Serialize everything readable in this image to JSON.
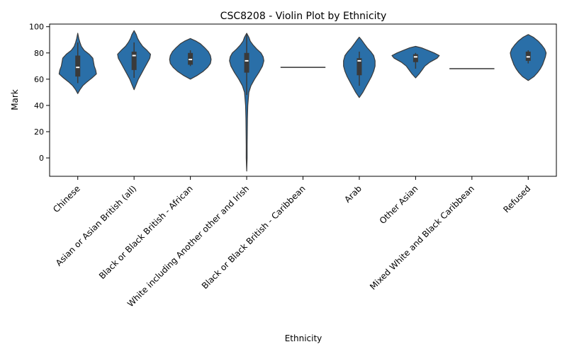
{
  "chart_data": {
    "type": "violin",
    "title": "CSC8208 - Violin Plot by Ethnicity",
    "xlabel": "Ethnicity",
    "ylabel": "Mark",
    "ylim": [
      -14,
      102
    ],
    "yticks": [
      0,
      20,
      40,
      60,
      80,
      100
    ],
    "grid": false,
    "color": "#2a6fa8",
    "categories": [
      "Chinese",
      "Asian or Asian British (all)",
      "Black or Black British - African",
      "White including Another other and Irish",
      "Black or Black British - Caribbean",
      "Arab",
      "Other Asian",
      "Mixed White and Black Caribbean",
      "Refused"
    ],
    "violins": [
      {
        "category": "Chinese",
        "range": [
          49,
          95
        ],
        "profile": [
          [
            49,
            0
          ],
          [
            52,
            3
          ],
          [
            55,
            7
          ],
          [
            58,
            13
          ],
          [
            61,
            20
          ],
          [
            64,
            26
          ],
          [
            67,
            25
          ],
          [
            70,
            23
          ],
          [
            73,
            22
          ],
          [
            76,
            21
          ],
          [
            79,
            16
          ],
          [
            82,
            9
          ],
          [
            85,
            5
          ],
          [
            88,
            3
          ],
          [
            91,
            1.5
          ],
          [
            95,
            0
          ]
        ],
        "q1": 62,
        "median": 69,
        "q3": 78,
        "whisker": [
          57,
          88
        ]
      },
      {
        "category": "Asian or Asian British (all)",
        "range": [
          52,
          97
        ],
        "profile": [
          [
            52,
            0
          ],
          [
            56,
            3
          ],
          [
            60,
            6
          ],
          [
            64,
            10
          ],
          [
            68,
            14
          ],
          [
            72,
            18
          ],
          [
            76,
            22
          ],
          [
            79,
            23
          ],
          [
            82,
            18
          ],
          [
            85,
            12
          ],
          [
            88,
            8
          ],
          [
            91,
            5
          ],
          [
            94,
            3
          ],
          [
            97,
            0
          ]
        ],
        "q1": 67,
        "median": 78,
        "q3": 81,
        "whisker": [
          61,
          88
        ]
      },
      {
        "category": "Black or Black British - African",
        "range": [
          60,
          91
        ],
        "profile": [
          [
            60,
            0
          ],
          [
            63,
            10
          ],
          [
            66,
            18
          ],
          [
            69,
            24
          ],
          [
            72,
            28
          ],
          [
            75,
            29
          ],
          [
            78,
            28
          ],
          [
            81,
            25
          ],
          [
            84,
            20
          ],
          [
            87,
            14
          ],
          [
            89,
            8
          ],
          [
            91,
            0
          ]
        ],
        "q1": 71,
        "median": 75,
        "q3": 80,
        "whisker": [
          70,
          82
        ]
      },
      {
        "category": "White including Another other and Irish",
        "range": [
          -10,
          95
        ],
        "profile": [
          [
            -10,
            0
          ],
          [
            0,
            0.6
          ],
          [
            10,
            0.6
          ],
          [
            20,
            0.8
          ],
          [
            30,
            1
          ],
          [
            40,
            1.5
          ],
          [
            50,
            3
          ],
          [
            55,
            6
          ],
          [
            60,
            11
          ],
          [
            65,
            17
          ],
          [
            70,
            22
          ],
          [
            74,
            24
          ],
          [
            77,
            23
          ],
          [
            80,
            20
          ],
          [
            83,
            14
          ],
          [
            86,
            9
          ],
          [
            89,
            5
          ],
          [
            92,
            3
          ],
          [
            95,
            0
          ]
        ],
        "q1": 65,
        "median": 74,
        "q3": 80,
        "whisker": [
          48,
          95
        ]
      },
      {
        "category": "Black or Black British - Caribbean",
        "range": [
          69,
          69
        ],
        "single_value": 69
      },
      {
        "category": "Arab",
        "range": [
          46,
          92
        ],
        "profile": [
          [
            46,
            0
          ],
          [
            50,
            5
          ],
          [
            54,
            9
          ],
          [
            58,
            13
          ],
          [
            62,
            17
          ],
          [
            66,
            20
          ],
          [
            70,
            22
          ],
          [
            74,
            22
          ],
          [
            78,
            20
          ],
          [
            81,
            16
          ],
          [
            84,
            11
          ],
          [
            87,
            7
          ],
          [
            90,
            3
          ],
          [
            92,
            0
          ]
        ],
        "q1": 63,
        "median": 74,
        "q3": 76,
        "whisker": [
          55,
          81
        ]
      },
      {
        "category": "Other Asian",
        "range": [
          61,
          85
        ],
        "profile": [
          [
            61,
            0
          ],
          [
            64,
            5
          ],
          [
            67,
            9
          ],
          [
            70,
            13
          ],
          [
            73,
            20
          ],
          [
            76,
            30
          ],
          [
            78,
            33
          ],
          [
            80,
            26
          ],
          [
            82,
            17
          ],
          [
            84,
            8
          ],
          [
            85,
            0
          ]
        ],
        "q1": 73,
        "median": 77,
        "q3": 79,
        "whisker": [
          68,
          80
        ]
      },
      {
        "category": "Mixed White and Black Caribbean",
        "range": [
          68,
          68
        ],
        "single_value": 68
      },
      {
        "category": "Refused",
        "range": [
          59,
          94
        ],
        "profile": [
          [
            59,
            0
          ],
          [
            62,
            8
          ],
          [
            65,
            13
          ],
          [
            68,
            17
          ],
          [
            71,
            20
          ],
          [
            74,
            22
          ],
          [
            77,
            24
          ],
          [
            80,
            25
          ],
          [
            83,
            23
          ],
          [
            86,
            19
          ],
          [
            89,
            14
          ],
          [
            92,
            7
          ],
          [
            94,
            0
          ]
        ],
        "q1": 74,
        "median": 77,
        "q3": 81,
        "whisker": [
          72,
          82
        ]
      }
    ]
  }
}
